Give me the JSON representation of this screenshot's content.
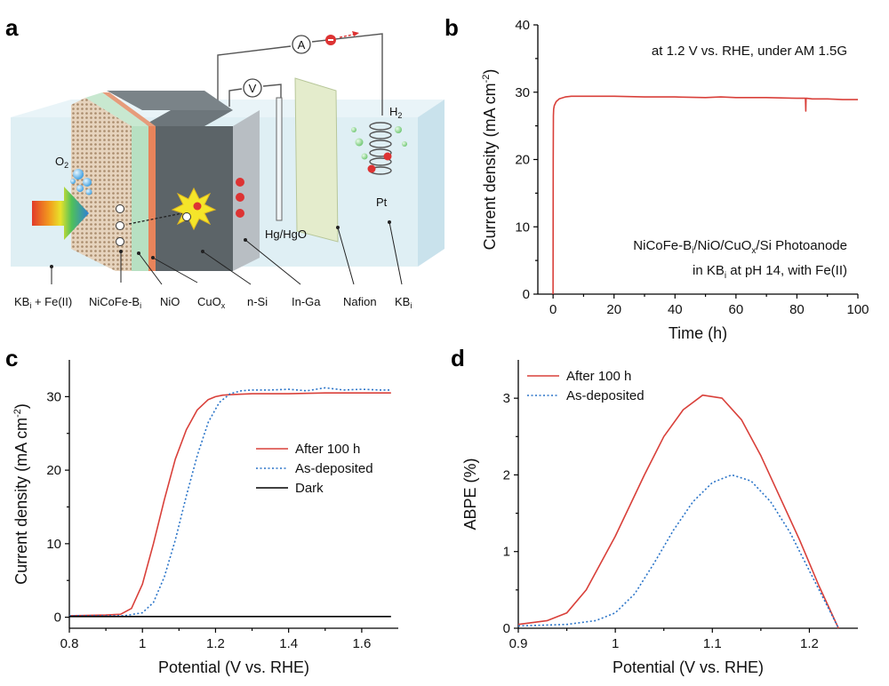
{
  "panels": {
    "a": "a",
    "b": "b",
    "c": "c",
    "d": "d"
  },
  "schematic": {
    "meter_a": "A",
    "meter_v": "V",
    "o2": "O",
    "o2_sub": "2",
    "h2": "H",
    "h2_sub": "2",
    "pt": "Pt",
    "reference": "Hg/HgO",
    "labels": [
      {
        "main": "KB",
        "sub": "i",
        "rest": " + Fe(II)"
      },
      {
        "main": "NiCoFe-B",
        "sub": "i",
        "rest": ""
      },
      {
        "main": "NiO",
        "sub": "",
        "rest": ""
      },
      {
        "main": "CuO",
        "sub": "x",
        "rest": ""
      },
      {
        "main": "n-Si",
        "sub": "",
        "rest": ""
      },
      {
        "main": "In-Ga",
        "sub": "",
        "rest": ""
      },
      {
        "main": "Nafion",
        "sub": "",
        "rest": ""
      },
      {
        "main": "KB",
        "sub": "i",
        "rest": ""
      }
    ],
    "colors": {
      "electrolyte": "#dcedf3",
      "bv_layer": "#d9c3a8",
      "nio_layer": "#b7e0c2",
      "cuox_layer": "#e8845b",
      "nsi_layer": "#5c6468",
      "inga_layer": "#b8bec3",
      "nafion": "#e4eccc"
    }
  },
  "chart_data": [
    {
      "panel": "b",
      "type": "line",
      "xlabel": "Time (h)",
      "ylabel": "Current density (mA cm",
      "ylabel_sup": "-2",
      "ylabel_end": ")",
      "xlim": [
        -5,
        100
      ],
      "ylim": [
        0,
        40
      ],
      "xticks": [
        0,
        20,
        40,
        60,
        80,
        100
      ],
      "yticks": [
        0,
        10,
        20,
        30,
        40
      ],
      "annotation_top": "at 1.2 V vs. RHE, under AM 1.5G",
      "annotation_bottom_1": {
        "parts": [
          "NiCoFe-B",
          "i",
          "/NiO/CuO",
          "x",
          "/Si Photoanode"
        ]
      },
      "annotation_bottom_2": {
        "parts": [
          "in KB",
          "i",
          " at pH 14, with Fe(II)"
        ]
      },
      "series": [
        {
          "color": "#d9403a",
          "x": [
            0,
            0.05,
            0.1,
            0.2,
            0.4,
            1,
            2,
            4,
            6,
            10,
            20,
            30,
            40,
            50,
            55,
            60,
            70,
            80,
            82.8,
            82.9,
            83.0,
            83.1,
            85,
            90,
            95,
            100
          ],
          "y": [
            0,
            20,
            26.5,
            27.5,
            28.0,
            28.6,
            29.0,
            29.3,
            29.4,
            29.4,
            29.4,
            29.3,
            29.3,
            29.2,
            29.3,
            29.2,
            29.2,
            29.1,
            29.1,
            27.2,
            29.1,
            29.1,
            29.0,
            29.0,
            28.9,
            28.9
          ]
        }
      ]
    },
    {
      "panel": "c",
      "type": "line",
      "xlabel": "Potential (V vs. RHE)",
      "ylabel": "Current density (mA cm",
      "ylabel_sup": "-2",
      "ylabel_end": ")",
      "xlim": [
        0.8,
        1.7
      ],
      "ylim": [
        -1.5,
        35
      ],
      "xticks": [
        0.8,
        1.0,
        1.2,
        1.4,
        1.6
      ],
      "yticks": [
        0,
        10,
        20,
        30
      ],
      "series": [
        {
          "name": "After 100 h",
          "color": "#d9403a",
          "style": "solid",
          "x": [
            0.8,
            0.9,
            0.94,
            0.97,
            1.0,
            1.03,
            1.06,
            1.09,
            1.12,
            1.15,
            1.18,
            1.2,
            1.22,
            1.25,
            1.3,
            1.4,
            1.5,
            1.6,
            1.68
          ],
          "y": [
            0.2,
            0.3,
            0.4,
            1.2,
            4.5,
            10,
            16,
            21.5,
            25.5,
            28.2,
            29.6,
            30.0,
            30.2,
            30.3,
            30.4,
            30.4,
            30.5,
            30.5,
            30.5
          ]
        },
        {
          "name": "As-deposited",
          "color": "#2a74c8",
          "style": "dotted",
          "x": [
            0.8,
            0.95,
            1.0,
            1.03,
            1.06,
            1.09,
            1.12,
            1.15,
            1.18,
            1.21,
            1.24,
            1.27,
            1.3,
            1.35,
            1.4,
            1.45,
            1.5,
            1.55,
            1.6,
            1.65,
            1.68
          ],
          "y": [
            0.2,
            0.2,
            0.6,
            2.0,
            5.5,
            10.5,
            16.5,
            22,
            26.5,
            29.2,
            30.4,
            30.8,
            30.9,
            30.9,
            31.0,
            30.8,
            31.2,
            30.9,
            31.0,
            30.9,
            30.9
          ]
        },
        {
          "name": "Dark",
          "color": "#000000",
          "style": "solid",
          "x": [
            0.8,
            1.68
          ],
          "y": [
            0.1,
            0.1
          ]
        }
      ]
    },
    {
      "panel": "d",
      "type": "line",
      "xlabel": "Potential (V vs. RHE)",
      "ylabel": "ABPE (%)",
      "xlim": [
        0.9,
        1.25
      ],
      "ylim": [
        0,
        3.5
      ],
      "xticks": [
        0.9,
        1.0,
        1.1,
        1.2
      ],
      "yticks": [
        0,
        1,
        2,
        3
      ],
      "series": [
        {
          "name": "After 100 h",
          "color": "#d9403a",
          "style": "solid",
          "x": [
            0.9,
            0.93,
            0.95,
            0.97,
            1.0,
            1.03,
            1.05,
            1.07,
            1.09,
            1.11,
            1.13,
            1.15,
            1.17,
            1.19,
            1.21,
            1.23
          ],
          "y": [
            0.05,
            0.1,
            0.2,
            0.5,
            1.2,
            2.0,
            2.5,
            2.85,
            3.04,
            3.0,
            2.72,
            2.25,
            1.7,
            1.15,
            0.55,
            0.0
          ]
        },
        {
          "name": "As-deposited",
          "color": "#2a74c8",
          "style": "dotted",
          "x": [
            0.9,
            0.95,
            0.98,
            1.0,
            1.02,
            1.04,
            1.06,
            1.08,
            1.1,
            1.12,
            1.14,
            1.16,
            1.18,
            1.2,
            1.23
          ],
          "y": [
            0.03,
            0.05,
            0.1,
            0.2,
            0.45,
            0.85,
            1.28,
            1.65,
            1.9,
            2.0,
            1.92,
            1.65,
            1.25,
            0.75,
            0.0
          ]
        }
      ]
    }
  ]
}
